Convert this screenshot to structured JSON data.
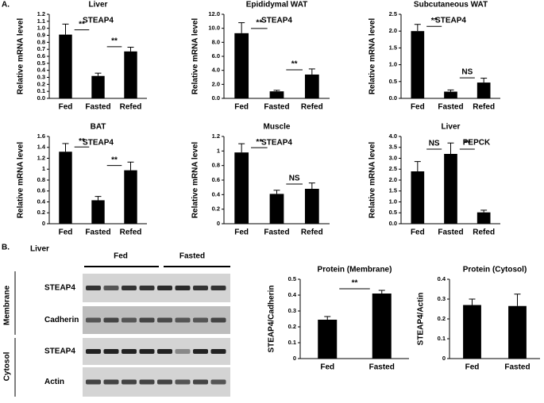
{
  "panels": {
    "a": "A.",
    "b": "B."
  },
  "blot": {
    "tissue": "Liver",
    "groups": [
      "Fed",
      "Fasted"
    ],
    "compartments": [
      "Membrane",
      "Cytosol"
    ],
    "rows": [
      "STEAP4",
      "Cadherin",
      "STEAP4",
      "Actin"
    ]
  },
  "chart_data": [
    {
      "type": "bar",
      "title": "Liver",
      "label": "STEAP4",
      "ylabel": "Relative mRNA level",
      "color": "#000000",
      "categories": [
        "Fed",
        "Fasted",
        "Refed"
      ],
      "values": [
        0.91,
        0.32,
        0.67
      ],
      "errors": [
        0.15,
        0.04,
        0.06
      ],
      "ylim": [
        0,
        1.2
      ],
      "yticks": [
        {
          "value": 0,
          "label": "0.0"
        },
        0.1,
        0.2,
        0.3,
        0.4,
        0.5,
        0.6,
        0.7,
        0.8,
        0.9,
        {
          "value": 1,
          "label": "1.0"
        },
        1.1,
        1.2
      ],
      "annotations": [
        "**",
        "**"
      ]
    },
    {
      "type": "bar",
      "title": "Epididymal WAT",
      "label": "STEAP4",
      "ylabel": "Relative mRNA level",
      "color": "#000000",
      "categories": [
        "Fed",
        "Fasted",
        "Refed"
      ],
      "values": [
        9.3,
        1.0,
        3.4
      ],
      "errors": [
        1.5,
        0.15,
        0.8
      ],
      "ylim": [
        0,
        12
      ],
      "yticks": [
        {
          "value": 0,
          "label": "0.0"
        },
        {
          "value": 2,
          "label": "2.0"
        },
        {
          "value": 4,
          "label": "4.0"
        },
        {
          "value": 6,
          "label": "6.0"
        },
        {
          "value": 8,
          "label": "8.0"
        },
        {
          "value": 10,
          "label": "10.0"
        },
        {
          "value": 12,
          "label": "12.0"
        }
      ],
      "annotations": [
        "**",
        "**"
      ]
    },
    {
      "type": "bar",
      "title": "Subcutaneous WAT",
      "label": "STEAP4",
      "ylabel": "Relative mRNA level",
      "color": "#000000",
      "categories": [
        "Fed",
        "Fasted",
        "Refed"
      ],
      "values": [
        2.0,
        0.2,
        0.47
      ],
      "errors": [
        0.2,
        0.05,
        0.13
      ],
      "ylim": [
        0,
        2.5
      ],
      "yticks": [
        {
          "value": 0,
          "label": "0.0"
        },
        0.5,
        {
          "value": 1,
          "label": "1.0"
        },
        1.5,
        {
          "value": 2,
          "label": "2.0"
        },
        2.5
      ],
      "annotations": [
        "**",
        "NS"
      ]
    },
    {
      "type": "bar",
      "title": "BAT",
      "label": "STEAP4",
      "ylabel": "Relative mRNA level",
      "color": "#000000",
      "categories": [
        "Fed",
        "Fasted",
        "Refed"
      ],
      "values": [
        1.32,
        0.43,
        0.98
      ],
      "errors": [
        0.15,
        0.07,
        0.15
      ],
      "ylim": [
        0,
        1.6
      ],
      "yticks": [
        0,
        0.2,
        0.4,
        0.6,
        0.8,
        1,
        1.2,
        1.4,
        1.6
      ],
      "annotations": [
        "**",
        "**"
      ]
    },
    {
      "type": "bar",
      "title": "Muscle",
      "label": "STEAP4",
      "ylabel": "Relative mRNA level",
      "color": "#000000",
      "categories": [
        "Fed",
        "Fasted",
        "Refed"
      ],
      "values": [
        0.98,
        0.41,
        0.48
      ],
      "errors": [
        0.12,
        0.05,
        0.08
      ],
      "ylim": [
        0,
        1.2
      ],
      "yticks": [
        0,
        0.2,
        0.4,
        0.6,
        0.8,
        1,
        1.2
      ],
      "annotations": [
        "**",
        "NS"
      ]
    },
    {
      "type": "bar",
      "title": "Liver",
      "label": "PEPCK",
      "ylabel": "Relative mRNA level",
      "color": "#000000",
      "categories": [
        "Fed",
        "Fasted",
        "Refed"
      ],
      "values": [
        2.4,
        3.2,
        0.52
      ],
      "errors": [
        0.45,
        0.5,
        0.1
      ],
      "ylim": [
        0,
        4
      ],
      "yticks": [
        {
          "value": 0,
          "label": "0.0"
        },
        0.5,
        {
          "value": 1,
          "label": "1.0"
        },
        1.5,
        {
          "value": 2,
          "label": "2.0"
        },
        2.5,
        {
          "value": 3,
          "label": "3.0"
        },
        3.5,
        {
          "value": 4,
          "label": "4.0"
        }
      ],
      "annotations": [
        "NS",
        "**"
      ]
    },
    {
      "type": "bar",
      "title": "Protein (Membrane)",
      "ylabel": "STEAP4/Cadherin",
      "color": "#000000",
      "categories": [
        "Fed",
        "Fasted"
      ],
      "values": [
        0.245,
        0.41
      ],
      "errors": [
        0.02,
        0.02
      ],
      "ylim": [
        0,
        0.5
      ],
      "yticks": [
        0,
        0.1,
        0.2,
        0.3,
        0.4,
        0.5
      ],
      "annotations": [
        "**"
      ]
    },
    {
      "type": "bar",
      "title": "Protein (Cytosol)",
      "ylabel": "STEAP4/Actin",
      "color": "#000000",
      "categories": [
        "Fed",
        "Fasted"
      ],
      "values": [
        0.27,
        0.265
      ],
      "errors": [
        0.03,
        0.06
      ],
      "ylim": [
        0,
        0.4
      ],
      "yticks": [
        0,
        0.1,
        0.2,
        0.3,
        0.4
      ],
      "annotations": []
    }
  ]
}
